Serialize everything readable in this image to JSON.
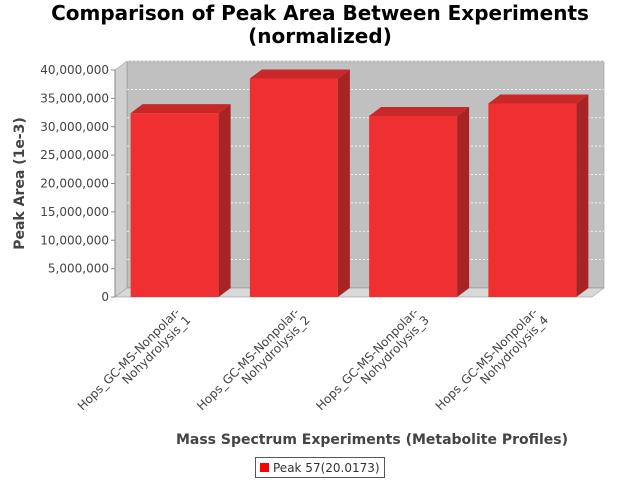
{
  "chart_data": {
    "type": "bar",
    "title_lines": [
      "Comparison of Peak Area Between Experiments",
      "(normalized)"
    ],
    "xlabel": "Mass Spectrum Experiments (Metabolite Profiles)",
    "ylabel": "Peak Area (1e-3)",
    "ylim": [
      0,
      40000000
    ],
    "yticks": [
      0,
      5000000,
      10000000,
      15000000,
      20000000,
      25000000,
      30000000,
      35000000,
      40000000
    ],
    "ytick_labels": [
      "0",
      "5,000,000",
      "10,000,000",
      "15,000,000",
      "20,000,000",
      "25,000,000",
      "30,000,000",
      "35,000,000",
      "40,000,000"
    ],
    "categories": [
      [
        "Hops_GC-MS-Nonpolar-",
        "Nohydrolysis_1"
      ],
      [
        "Hops_GC-MS-Nonpolar-",
        "Nohydrolysis_2"
      ],
      [
        "Hops_GC-MS-Nonpolar-",
        "Nohydrolysis_3"
      ],
      [
        "Hops_GC-MS-Nonpolar-",
        "Nohydrolysis_4"
      ]
    ],
    "series": [
      {
        "name": "Peak 57(20.0173)",
        "color": "#ff0000",
        "values": [
          32400000,
          38500000,
          31900000,
          34100000
        ]
      }
    ],
    "grid": true,
    "legend_position": "bottom-center",
    "plot_background": "#c0c0c0",
    "style": "3d"
  }
}
